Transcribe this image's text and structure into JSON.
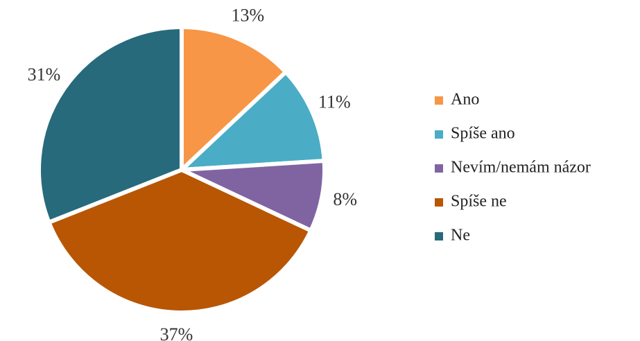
{
  "chart_data": {
    "type": "pie",
    "categories": [
      "Ano",
      "Spíše ano",
      "Nevím/nemám názor",
      "Spíše ne",
      "Ne"
    ],
    "values": [
      13,
      11,
      8,
      37,
      31
    ],
    "value_labels": [
      "13%",
      "11%",
      "8%",
      "37%",
      "31%"
    ],
    "colors": [
      "#f79646",
      "#4bacc6",
      "#8064a2",
      "#b85604",
      "#276a7c"
    ],
    "legend": "right"
  }
}
